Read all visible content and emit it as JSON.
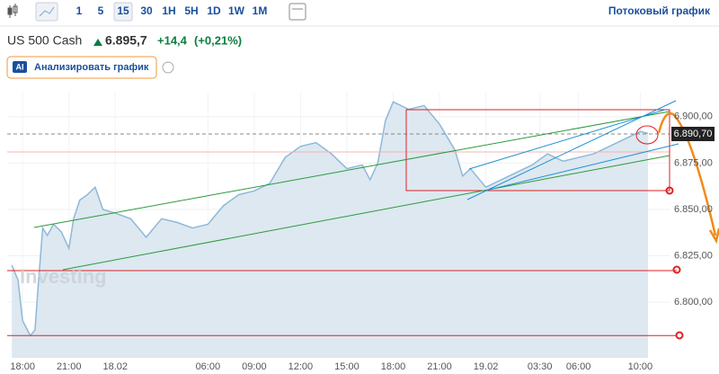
{
  "toolbar": {
    "intervals": [
      "1",
      "5",
      "15",
      "30",
      "1H",
      "5H",
      "1D",
      "1W",
      "1M"
    ],
    "active": "15",
    "stream": "Потоковый график"
  },
  "header": {
    "instrument": "US 500 Cash",
    "price": "6.895,7",
    "change": "+14,4",
    "change_pct": "(+0,21%)"
  },
  "analyze": {
    "badge": "AI",
    "label": "Анализировать график"
  },
  "watermark": {
    "brand": "Investing",
    ".com": ".com"
  },
  "chart_data": {
    "type": "area",
    "color": "#8fb8d8",
    "fill": "#dde8f1",
    "x": [
      -0.7,
      -0.3,
      0,
      0.5,
      0.8,
      1,
      1.3,
      1.6,
      2,
      2.5,
      3,
      3.3,
      3.7,
      4.2,
      4.7,
      5.2,
      6,
      7,
      8,
      9,
      10,
      11,
      12,
      13,
      14,
      15,
      16,
      17,
      18,
      19,
      20,
      21,
      22,
      22.5,
      23,
      23.5,
      24,
      25,
      26,
      27,
      28,
      28.5,
      29,
      30,
      31,
      32,
      33,
      34,
      35,
      36,
      37,
      38,
      39,
      40,
      40.5
    ],
    "values": [
      6820,
      6812,
      6790,
      6782,
      6785,
      6808,
      6840,
      6836,
      6842,
      6838,
      6829,
      6845,
      6855,
      6858,
      6862,
      6850,
      6848,
      6845,
      6835,
      6845,
      6843,
      6840,
      6842,
      6852,
      6858,
      6860,
      6864,
      6878,
      6884,
      6886,
      6880,
      6872,
      6874,
      6866,
      6875,
      6898,
      6908,
      6904,
      6906,
      6896,
      6882,
      6868,
      6872,
      6862,
      6866,
      6870,
      6874,
      6880,
      6876,
      6878,
      6880,
      6884,
      6888,
      6892,
      6891
    ],
    "xlim": [
      -1,
      41.9
    ],
    "ylim": [
      6770,
      6913
    ],
    "xticks": [
      {
        "value": 0,
        "label": "18:00"
      },
      {
        "value": 3,
        "label": "21:00"
      },
      {
        "value": 6,
        "label": "18.02"
      },
      {
        "value": 12,
        "label": "06:00"
      },
      {
        "value": 15,
        "label": "09:00"
      },
      {
        "value": 18,
        "label": "12:00"
      },
      {
        "value": 21,
        "label": "15:00"
      },
      {
        "value": 24,
        "label": "18:00"
      },
      {
        "value": 27,
        "label": "21:00"
      },
      {
        "value": 30,
        "label": "19.02"
      },
      {
        "value": 33.5,
        "label": "03:30"
      },
      {
        "value": 36,
        "label": "06:00"
      },
      {
        "value": 40,
        "label": "10:00"
      }
    ],
    "yticks": [
      {
        "value": 6800,
        "label": "6.800,00"
      },
      {
        "value": 6825,
        "label": "6.825,00"
      },
      {
        "value": 6850,
        "label": "6.850,00"
      },
      {
        "value": 6875,
        "label": "6.875,00"
      },
      {
        "value": 6900,
        "label": "6.900,00"
      }
    ],
    "grid": true,
    "price_line": {
      "value": 6890.7,
      "label": "6.890,70"
    },
    "prev_close": 6881,
    "levels": [
      6817,
      6782
    ]
  }
}
